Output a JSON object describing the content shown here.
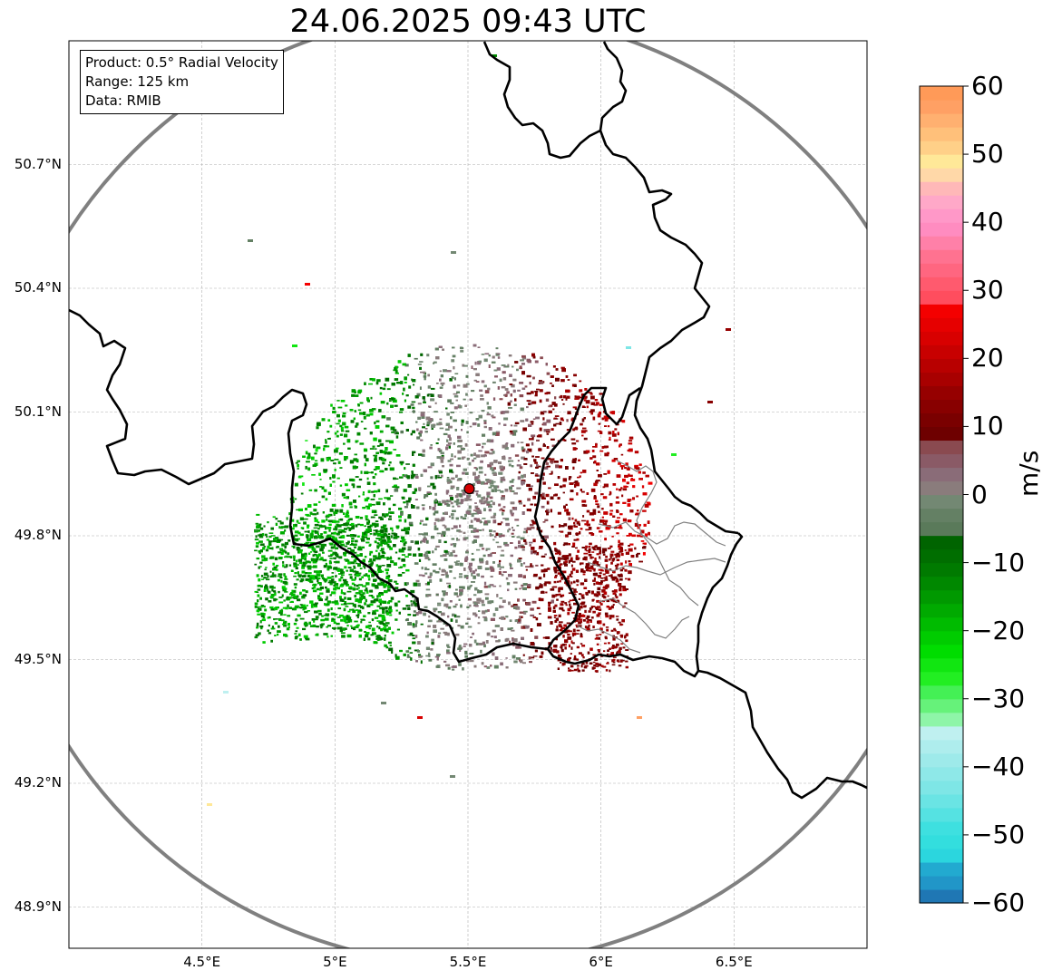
{
  "title": "24.06.2025 09:43 UTC",
  "info": {
    "product": "Product: 0.5° Radial Velocity",
    "range": "Range: 125 km",
    "data": "Data: RMIB"
  },
  "map": {
    "lon_range": [
      4.0,
      7.0
    ],
    "lat_range": [
      48.8,
      51.0
    ],
    "x_ticks": [
      {
        "value": 4.5,
        "label": "4.5°E"
      },
      {
        "value": 5.0,
        "label": "5°E"
      },
      {
        "value": 5.5,
        "label": "5.5°E"
      },
      {
        "value": 6.0,
        "label": "6°E"
      },
      {
        "value": 6.5,
        "label": "6.5°E"
      }
    ],
    "y_ticks": [
      {
        "value": 50.7,
        "label": "50.7°N"
      },
      {
        "value": 50.4,
        "label": "50.4°N"
      },
      {
        "value": 50.1,
        "label": "50.1°N"
      },
      {
        "value": 49.8,
        "label": "49.8°N"
      },
      {
        "value": 49.5,
        "label": "49.5°N"
      },
      {
        "value": 49.2,
        "label": "49.2°N"
      },
      {
        "value": 48.9,
        "label": "48.9°N"
      }
    ],
    "radar_site": {
      "lon": 5.505,
      "lat": 49.914,
      "color": "#d40000"
    },
    "range_ring_color": "#808080",
    "border_color": "#000000",
    "admin_border_color": "#808080",
    "gridline_color": "#b0b0b0"
  },
  "colorbar": {
    "unit": "m/s",
    "min": -60,
    "max": 60,
    "ticks": [
      {
        "value": 60,
        "label": "60"
      },
      {
        "value": 50,
        "label": "50"
      },
      {
        "value": 40,
        "label": "40"
      },
      {
        "value": 30,
        "label": "30"
      },
      {
        "value": 20,
        "label": "20"
      },
      {
        "value": 10,
        "label": "10"
      },
      {
        "value": 0,
        "label": "0"
      },
      {
        "value": -10,
        "label": "−10"
      },
      {
        "value": -20,
        "label": "−20"
      },
      {
        "value": -30,
        "label": "−30"
      },
      {
        "value": -40,
        "label": "−40"
      },
      {
        "value": -50,
        "label": "−50"
      },
      {
        "value": -60,
        "label": "−60"
      }
    ],
    "bands": [
      {
        "from": -60,
        "to": -58,
        "color": "#1f77b4"
      },
      {
        "from": -58,
        "to": -56,
        "color": "#2196c8"
      },
      {
        "from": -56,
        "to": -54,
        "color": "#22aad0"
      },
      {
        "from": -54,
        "to": -52,
        "color": "#2bd6de"
      },
      {
        "from": -52,
        "to": -50,
        "color": "#33dede"
      },
      {
        "from": -50,
        "to": -48,
        "color": "#3ee0e0"
      },
      {
        "from": -48,
        "to": -46,
        "color": "#55e2e2"
      },
      {
        "from": -46,
        "to": -44,
        "color": "#6ae4e4"
      },
      {
        "from": -44,
        "to": -42,
        "color": "#7ee6e6"
      },
      {
        "from": -42,
        "to": -40,
        "color": "#8ee8e8"
      },
      {
        "from": -40,
        "to": -38,
        "color": "#9eeaea"
      },
      {
        "from": -38,
        "to": -36,
        "color": "#aeeded"
      },
      {
        "from": -36,
        "to": -34,
        "color": "#bff0f0"
      },
      {
        "from": -34,
        "to": -32,
        "color": "#8ef5a8"
      },
      {
        "from": -32,
        "to": -30,
        "color": "#66f27a"
      },
      {
        "from": -30,
        "to": -28,
        "color": "#44f055"
      },
      {
        "from": -28,
        "to": -26,
        "color": "#22ee22"
      },
      {
        "from": -26,
        "to": -24,
        "color": "#11e611"
      },
      {
        "from": -24,
        "to": -22,
        "color": "#00dd00"
      },
      {
        "from": -22,
        "to": -20,
        "color": "#00cc00"
      },
      {
        "from": -20,
        "to": -18,
        "color": "#00bb00"
      },
      {
        "from": -18,
        "to": -16,
        "color": "#00aa00"
      },
      {
        "from": -16,
        "to": -14,
        "color": "#009900"
      },
      {
        "from": -14,
        "to": -12,
        "color": "#008800"
      },
      {
        "from": -12,
        "to": -10,
        "color": "#007a00"
      },
      {
        "from": -10,
        "to": -8,
        "color": "#006e00"
      },
      {
        "from": -8,
        "to": -6,
        "color": "#006400"
      },
      {
        "from": -6,
        "to": -4,
        "color": "#5a7a5a"
      },
      {
        "from": -4,
        "to": -2,
        "color": "#648064"
      },
      {
        "from": -2,
        "to": 0,
        "color": "#738873"
      },
      {
        "from": 0,
        "to": 2,
        "color": "#8a7c7c"
      },
      {
        "from": 2,
        "to": 4,
        "color": "#8a6c78"
      },
      {
        "from": 4,
        "to": 6,
        "color": "#8a5a66"
      },
      {
        "from": 6,
        "to": 8,
        "color": "#8a4a50"
      },
      {
        "from": 8,
        "to": 10,
        "color": "#6e0000"
      },
      {
        "from": 10,
        "to": 12,
        "color": "#7a0000"
      },
      {
        "from": 12,
        "to": 14,
        "color": "#880000"
      },
      {
        "from": 14,
        "to": 16,
        "color": "#960000"
      },
      {
        "from": 16,
        "to": 18,
        "color": "#a80000"
      },
      {
        "from": 18,
        "to": 20,
        "color": "#b80000"
      },
      {
        "from": 20,
        "to": 22,
        "color": "#c80000"
      },
      {
        "from": 22,
        "to": 24,
        "color": "#d80000"
      },
      {
        "from": 24,
        "to": 26,
        "color": "#e60000"
      },
      {
        "from": 26,
        "to": 28,
        "color": "#f40000"
      },
      {
        "from": 28,
        "to": 30,
        "color": "#ff4d5e"
      },
      {
        "from": 30,
        "to": 32,
        "color": "#ff5a6e"
      },
      {
        "from": 32,
        "to": 34,
        "color": "#ff6680"
      },
      {
        "from": 34,
        "to": 36,
        "color": "#ff7290"
      },
      {
        "from": 36,
        "to": 38,
        "color": "#ff80a8"
      },
      {
        "from": 38,
        "to": 40,
        "color": "#ff8cc0"
      },
      {
        "from": 40,
        "to": 42,
        "color": "#ff98c8"
      },
      {
        "from": 42,
        "to": 44,
        "color": "#ffa8c8"
      },
      {
        "from": 44,
        "to": 46,
        "color": "#ffb8b8"
      },
      {
        "from": 46,
        "to": 48,
        "color": "#ffd8a8"
      },
      {
        "from": 48,
        "to": 50,
        "color": "#ffe898"
      },
      {
        "from": 50,
        "to": 52,
        "color": "#ffd088"
      },
      {
        "from": 52,
        "to": 54,
        "color": "#ffc07a"
      },
      {
        "from": 54,
        "to": 56,
        "color": "#ffb070"
      },
      {
        "from": 56,
        "to": 58,
        "color": "#ffa064"
      },
      {
        "from": 58,
        "to": 60,
        "color": "#ff9a58"
      }
    ]
  }
}
